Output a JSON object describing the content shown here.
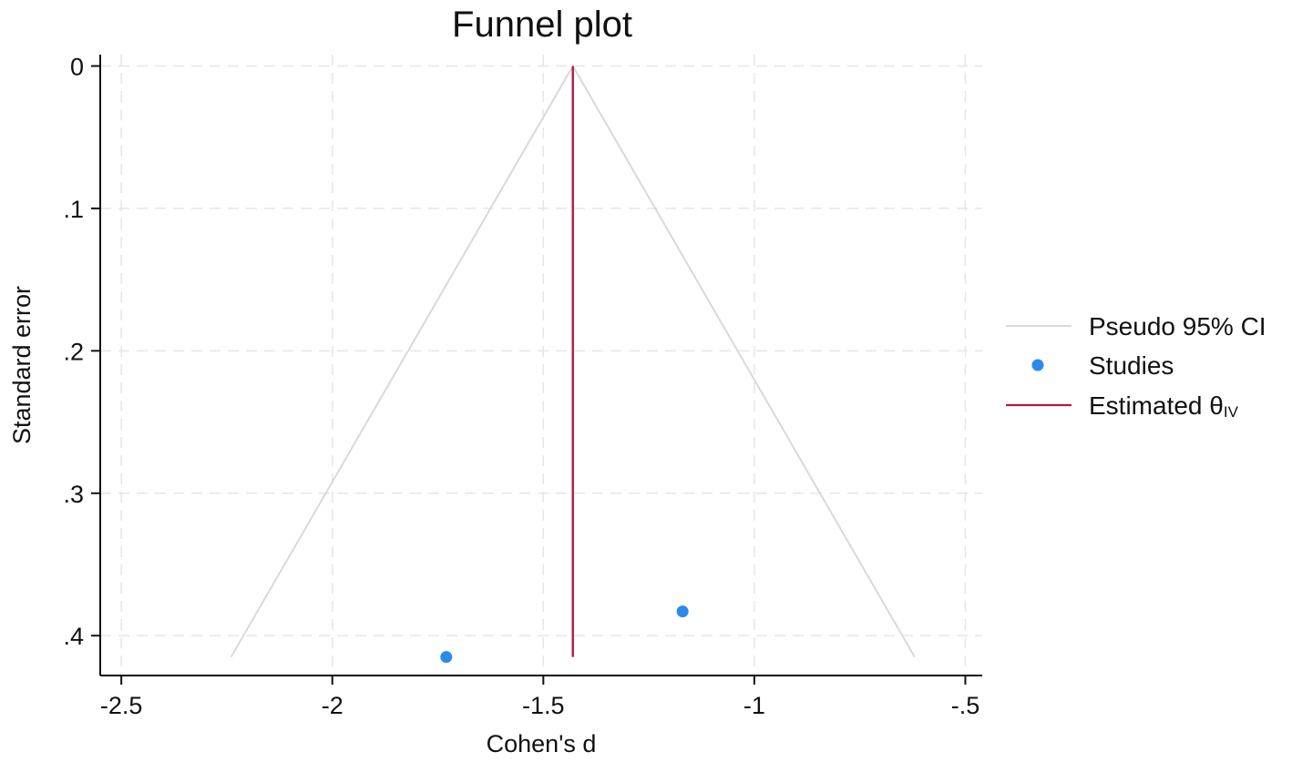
{
  "chart_data": {
    "type": "scatter",
    "title": "Funnel plot",
    "xlabel": "Cohen's d",
    "ylabel": "Standard error",
    "xlim": [
      -2.55,
      -0.46
    ],
    "ylim": [
      0.428,
      -0.008
    ],
    "y_reversed": true,
    "x_ticks": [
      -2.5,
      -2,
      -1.5,
      -1,
      -0.5
    ],
    "x_tick_labels": [
      "-2.5",
      "-2",
      "-1.5",
      "-1",
      "-.5"
    ],
    "y_ticks": [
      0,
      0.1,
      0.2,
      0.3,
      0.4
    ],
    "y_tick_labels": [
      "0",
      ".1",
      ".2",
      ".3",
      ".4"
    ],
    "grid": true,
    "legend_position": "right",
    "legend": [
      {
        "label": "Pseudo 95% CI",
        "sub": ""
      },
      {
        "label": "Studies",
        "sub": ""
      },
      {
        "label": "Estimated θ",
        "sub": "IV"
      }
    ],
    "estimate": -1.43,
    "ci_lines": [
      {
        "points": [
          [
            -1.43,
            0
          ],
          [
            -2.24,
            0.415
          ]
        ]
      },
      {
        "points": [
          [
            -1.43,
            0
          ],
          [
            -0.62,
            0.415
          ]
        ]
      }
    ],
    "estimate_line": {
      "x": -1.43,
      "y_range": [
        0,
        0.415
      ]
    },
    "studies": [
      {
        "x": -1.73,
        "y": 0.415
      },
      {
        "x": -1.17,
        "y": 0.383
      }
    ],
    "colors": {
      "ci": "#d9d9d9",
      "studies": "#2a8be8",
      "estimate": "#b01c42",
      "grid": "#e6e6e6",
      "axis": "#111111"
    }
  }
}
